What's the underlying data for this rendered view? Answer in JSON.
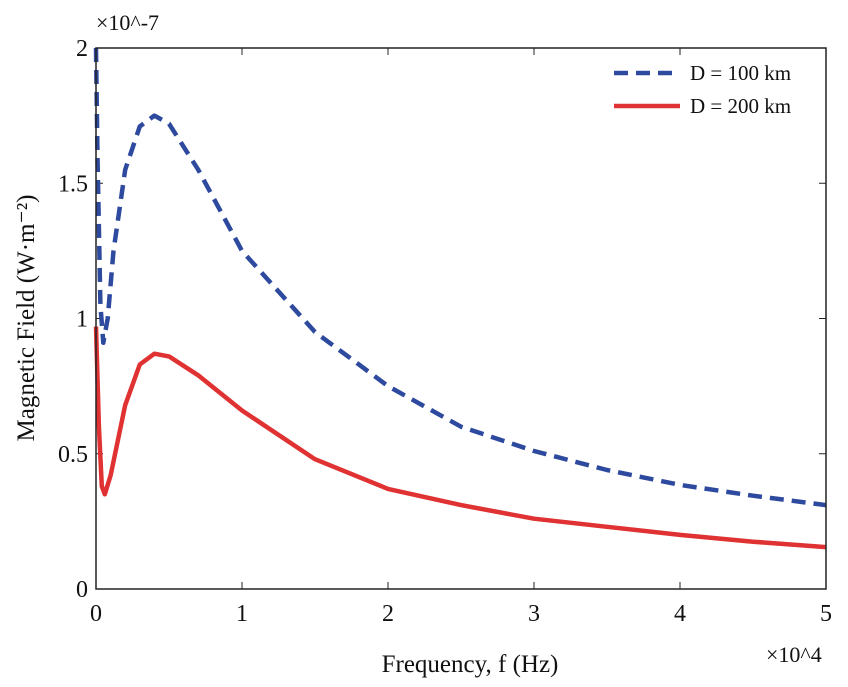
{
  "chart_data": {
    "type": "line",
    "title": "",
    "xlabel": "Frequency, f (Hz)",
    "ylabel": "Magnetic Field (W·m⁻²)",
    "x_multiplier": "×10^4",
    "y_multiplier": "×10^-7",
    "xlim": [
      0,
      5
    ],
    "ylim": [
      0,
      2
    ],
    "xticks": [
      "0",
      "1",
      "2",
      "3",
      "4",
      "5"
    ],
    "yticks": [
      "0",
      "0.5",
      "1",
      "1.5",
      "2"
    ],
    "grid": false,
    "legend_position": "top-right",
    "series": [
      {
        "name": "D = 100 km",
        "color": "#2e4a9e",
        "style": "dashed",
        "x": [
          0,
          0.01,
          0.03,
          0.05,
          0.08,
          0.12,
          0.2,
          0.3,
          0.4,
          0.5,
          0.7,
          1.0,
          1.5,
          2,
          2.5,
          3,
          3.5,
          4,
          4.5,
          5
        ],
        "y": [
          2.0,
          1.6,
          1.05,
          0.91,
          1.0,
          1.25,
          1.55,
          1.71,
          1.75,
          1.72,
          1.55,
          1.25,
          0.95,
          0.75,
          0.6,
          0.51,
          0.44,
          0.385,
          0.345,
          0.31
        ]
      },
      {
        "name": "D = 200 km",
        "color": "#e03232",
        "style": "solid",
        "x": [
          0,
          0.02,
          0.04,
          0.06,
          0.1,
          0.2,
          0.3,
          0.4,
          0.5,
          0.7,
          1.0,
          1.5,
          2,
          2.5,
          3,
          3.5,
          4,
          4.5,
          5
        ],
        "y": [
          0.97,
          0.6,
          0.38,
          0.35,
          0.42,
          0.68,
          0.83,
          0.87,
          0.86,
          0.79,
          0.66,
          0.48,
          0.37,
          0.31,
          0.26,
          0.23,
          0.2,
          0.175,
          0.155
        ]
      }
    ]
  }
}
